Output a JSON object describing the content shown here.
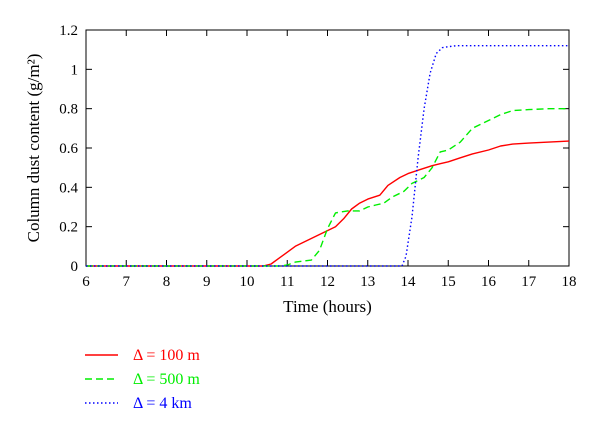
{
  "chart_data": {
    "type": "line",
    "xlabel": "Time (hours)",
    "ylabel": "Column dust content (g/m²)",
    "xlim": [
      6,
      18
    ],
    "ylim": [
      0,
      1.2
    ],
    "x_ticks": [
      "6",
      "7",
      "8",
      "9",
      "10",
      "11",
      "12",
      "13",
      "14",
      "15",
      "16",
      "17",
      "18"
    ],
    "y_ticks": [
      "0",
      "0.2",
      "0.4",
      "0.6",
      "0.8",
      "1",
      "1.2"
    ],
    "grid": false,
    "legend_position": "bottom-left",
    "series": [
      {
        "name": "Δ = 100 m",
        "color": "#ff0000",
        "dash": "solid",
        "x": [
          6,
          10.4,
          10.6,
          10.8,
          11.0,
          11.2,
          11.5,
          11.8,
          12.0,
          12.2,
          12.4,
          12.6,
          12.8,
          13.0,
          13.3,
          13.5,
          13.8,
          14.0,
          14.3,
          14.6,
          14.8,
          15.0,
          15.3,
          15.6,
          16.0,
          16.3,
          16.6,
          17.0,
          17.5,
          18.0
        ],
        "y": [
          0,
          0,
          0.01,
          0.04,
          0.07,
          0.1,
          0.13,
          0.16,
          0.18,
          0.2,
          0.24,
          0.29,
          0.32,
          0.34,
          0.36,
          0.41,
          0.45,
          0.47,
          0.49,
          0.51,
          0.52,
          0.53,
          0.55,
          0.57,
          0.59,
          0.61,
          0.62,
          0.625,
          0.63,
          0.635
        ]
      },
      {
        "name": "Δ = 500 m",
        "color": "#00ee00",
        "dash": "dashed",
        "x": [
          6,
          10.8,
          11.0,
          11.2,
          11.6,
          11.8,
          12.0,
          12.2,
          12.5,
          12.8,
          13.0,
          13.2,
          13.4,
          13.6,
          13.9,
          14.1,
          14.4,
          14.6,
          14.8,
          15.0,
          15.3,
          15.6,
          16.0,
          16.3,
          16.6,
          17.0,
          17.5,
          18.0
        ],
        "y": [
          0,
          0,
          0.005,
          0.02,
          0.03,
          0.08,
          0.19,
          0.27,
          0.28,
          0.28,
          0.3,
          0.31,
          0.32,
          0.35,
          0.38,
          0.42,
          0.45,
          0.5,
          0.58,
          0.59,
          0.63,
          0.7,
          0.74,
          0.77,
          0.79,
          0.795,
          0.8,
          0.8
        ]
      },
      {
        "name": "Δ = 4 km",
        "color": "#0000ff",
        "dash": "dotted",
        "x": [
          6,
          13.85,
          13.95,
          14.1,
          14.25,
          14.4,
          14.55,
          14.7,
          14.85,
          15.0,
          15.2,
          15.5,
          16.0,
          17.0,
          18.0
        ],
        "y": [
          0,
          0,
          0.05,
          0.25,
          0.55,
          0.8,
          0.98,
          1.08,
          1.11,
          1.115,
          1.12,
          1.12,
          1.12,
          1.12,
          1.12
        ]
      }
    ]
  }
}
